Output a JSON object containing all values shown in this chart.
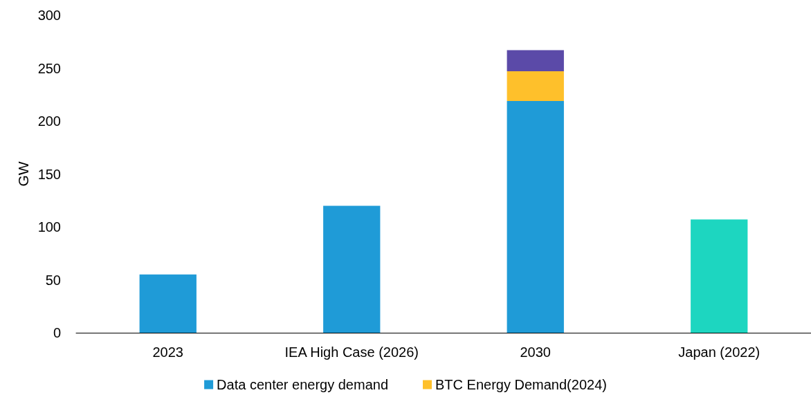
{
  "chart_data": {
    "type": "bar",
    "ylabel": "GW",
    "categories": [
      "2023",
      "IEA High Case (2026)",
      "2030",
      "Japan (2022)"
    ],
    "stacked": true,
    "ylim": [
      0,
      300
    ],
    "yticks": [
      0,
      50,
      100,
      150,
      200,
      250,
      300
    ],
    "grid": false,
    "legend": "bottom",
    "series": [
      {
        "name": "Data center energy demand",
        "color": "#1f9bd7",
        "colors": [
          "#1f9bd7",
          "#1f9bd7",
          "#1f9bd7",
          "#1dd6c0"
        ],
        "values": [
          55,
          120,
          219,
          107
        ]
      },
      {
        "name": "BTC Energy Demand(2024)",
        "color": "#fec02b",
        "values": [
          null,
          null,
          28,
          null
        ]
      },
      {
        "color": "#5b4aa8",
        "values": [
          null,
          null,
          20,
          null
        ]
      }
    ]
  }
}
